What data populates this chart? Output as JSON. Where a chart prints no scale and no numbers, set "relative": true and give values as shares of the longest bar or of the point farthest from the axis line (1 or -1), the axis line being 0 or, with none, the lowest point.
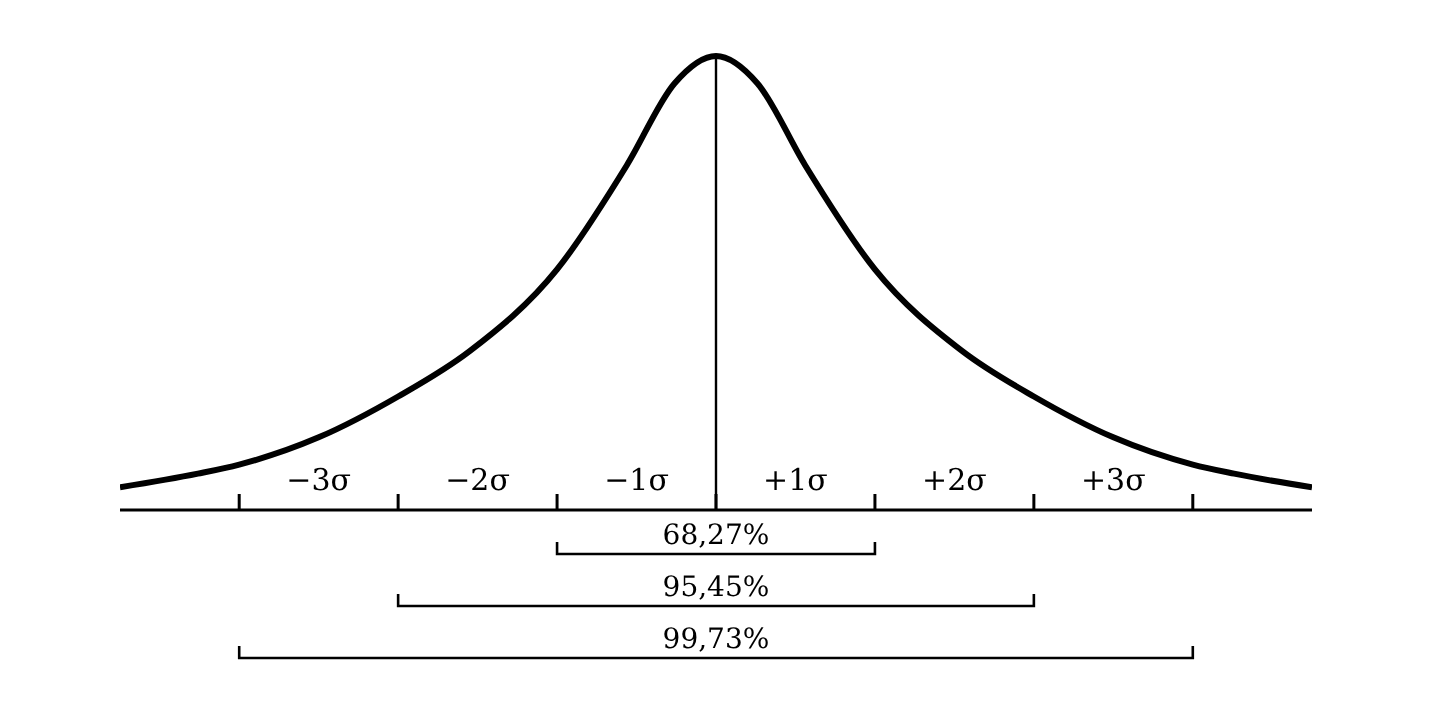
{
  "chart_data": {
    "type": "line",
    "relative": true,
    "x": [
      -3.75,
      -3.26,
      -3,
      -2.5,
      -2,
      -1.55,
      -1,
      -0.56,
      -0.26,
      0,
      0.26,
      0.56,
      1,
      1.55,
      2,
      2.5,
      3,
      3.26,
      3.75
    ],
    "series": [
      {
        "color": "#000000",
        "values": [
          0.05,
          0.08,
          0.1,
          0.16,
          0.25,
          0.35,
          0.53,
          0.76,
          0.94,
          1,
          0.94,
          0.76,
          0.53,
          0.35,
          0.25,
          0.16,
          0.1,
          0.08,
          0.05
        ]
      }
    ],
    "xlim": [
      -3.75,
      3.75
    ],
    "xticks": [
      {
        "value": -3,
        "label": null
      },
      {
        "value": -2.5,
        "label": "−3σ"
      },
      {
        "value": -2,
        "label": null
      },
      {
        "value": -1.5,
        "label": "−2σ"
      },
      {
        "value": -1,
        "label": null
      },
      {
        "value": -0.5,
        "label": "−1σ"
      },
      {
        "value": 0,
        "label": null
      },
      {
        "value": 0.5,
        "label": "+1σ"
      },
      {
        "value": 1,
        "label": null
      },
      {
        "value": 1.5,
        "label": "+2σ"
      },
      {
        "value": 2,
        "label": null
      },
      {
        "value": 2.5,
        "label": "+3σ"
      },
      {
        "value": 3,
        "label": null
      }
    ],
    "ref_lines": [
      {
        "axis": "x",
        "value": 0,
        "label": null,
        "color": "#000000"
      }
    ],
    "annotations": [
      "68,27%",
      "95,45%",
      "99,73%"
    ],
    "marker": "none",
    "line_style": "solid"
  }
}
